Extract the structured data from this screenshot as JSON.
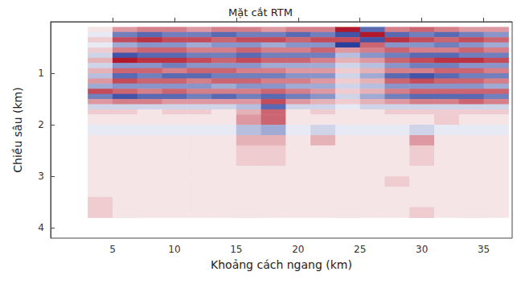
{
  "chart_data": {
    "type": "heatmap",
    "title": "Mặt cắt RTM",
    "xlabel": "Khoảng cách ngang (km)",
    "ylabel": "Chiều sâu (km)",
    "xlim": [
      0,
      37.3
    ],
    "ylim": [
      0,
      4.2
    ],
    "xticks": [
      5,
      10,
      15,
      20,
      25,
      30,
      35
    ],
    "yticks": [
      1,
      2,
      3,
      4
    ],
    "grid": false,
    "x_edges": [
      3,
      5,
      7,
      9,
      11,
      13,
      15,
      17,
      19,
      21,
      23,
      25,
      27,
      29,
      31,
      33,
      35,
      37
    ],
    "depth_edges": [
      0.1,
      0.2,
      0.3,
      0.4,
      0.5,
      0.6,
      0.7,
      0.8,
      0.9,
      1.0,
      1.1,
      1.2,
      1.3,
      1.4,
      1.5,
      1.6,
      1.7,
      1.8,
      2.0,
      2.2,
      2.4,
      2.6,
      2.8,
      3.0,
      3.2,
      3.4,
      3.6,
      3.8
    ],
    "amplitude": [
      [
        0.1,
        0.4,
        0.5,
        0.5,
        0.4,
        0.5,
        0.5,
        0.4,
        0.5,
        0.5,
        0.9,
        -0.7,
        0.5,
        0.6,
        0.5,
        0.4,
        0.4
      ],
      [
        -0.1,
        -0.6,
        -0.7,
        -0.6,
        -0.6,
        -0.7,
        -0.6,
        -0.6,
        -0.7,
        -0.6,
        -0.8,
        0.9,
        -0.7,
        -0.6,
        -0.7,
        -0.6,
        -0.5
      ],
      [
        0.2,
        0.7,
        0.8,
        0.7,
        0.7,
        0.6,
        0.7,
        0.7,
        0.6,
        0.7,
        0.7,
        -0.8,
        0.8,
        0.7,
        0.6,
        0.7,
        0.6
      ],
      [
        -0.1,
        -0.4,
        -0.5,
        -0.5,
        -0.4,
        -0.5,
        -0.5,
        -0.4,
        -0.5,
        -0.5,
        -0.9,
        0.6,
        -0.5,
        -0.5,
        -0.6,
        -0.5,
        -0.4
      ],
      [
        0.2,
        0.5,
        0.6,
        0.6,
        0.5,
        0.5,
        0.6,
        0.5,
        0.5,
        0.6,
        0.4,
        0.5,
        0.6,
        0.5,
        0.5,
        0.6,
        0.5
      ],
      [
        -0.2,
        -0.8,
        -0.7,
        -0.7,
        -0.6,
        -0.6,
        -0.7,
        -0.6,
        -0.6,
        -0.6,
        -0.3,
        -0.5,
        -0.6,
        -0.7,
        -0.7,
        -0.6,
        -0.6
      ],
      [
        0.3,
        0.9,
        0.8,
        0.8,
        0.7,
        0.6,
        0.7,
        0.6,
        0.6,
        0.5,
        0.3,
        0.4,
        0.6,
        0.7,
        0.8,
        0.8,
        0.7
      ],
      [
        -0.2,
        -0.5,
        -0.5,
        -0.6,
        -0.5,
        -0.5,
        -0.5,
        -0.4,
        -0.4,
        -0.4,
        -0.2,
        -0.3,
        -0.5,
        -0.6,
        -0.6,
        -0.5,
        -0.5
      ],
      [
        0.3,
        0.6,
        0.6,
        0.5,
        0.6,
        0.6,
        0.5,
        0.5,
        0.4,
        0.4,
        0.2,
        0.3,
        0.5,
        0.5,
        0.6,
        0.6,
        0.5
      ],
      [
        -0.3,
        -0.7,
        -0.6,
        -0.7,
        -0.7,
        -0.6,
        -0.6,
        -0.6,
        -0.5,
        -0.5,
        -0.2,
        -0.4,
        -0.7,
        -0.8,
        -0.7,
        -0.6,
        -0.6
      ],
      [
        0.4,
        0.7,
        0.6,
        0.6,
        0.5,
        0.6,
        0.6,
        0.5,
        0.5,
        0.4,
        0.2,
        0.3,
        0.6,
        0.7,
        0.6,
        0.6,
        0.5
      ],
      [
        -0.4,
        -0.5,
        -0.5,
        -0.5,
        -0.5,
        -0.4,
        -0.5,
        -0.5,
        -0.4,
        -0.4,
        -0.2,
        -0.3,
        -0.5,
        -0.5,
        -0.5,
        -0.5,
        -0.4
      ],
      [
        0.7,
        0.6,
        0.5,
        0.6,
        0.5,
        0.5,
        0.5,
        0.6,
        0.5,
        0.4,
        0.2,
        0.3,
        0.5,
        0.6,
        0.6,
        0.6,
        0.6
      ],
      [
        -0.6,
        -0.8,
        -0.7,
        -0.7,
        -0.6,
        -0.7,
        -0.6,
        -0.7,
        -0.6,
        -0.5,
        -0.2,
        -0.4,
        -0.6,
        -0.7,
        -0.7,
        -0.7,
        -0.6
      ],
      [
        0.4,
        0.5,
        0.5,
        0.4,
        0.4,
        0.4,
        0.4,
        0.7,
        0.4,
        0.3,
        0.2,
        0.3,
        0.4,
        0.5,
        0.5,
        0.6,
        0.5
      ],
      [
        -0.2,
        -0.2,
        -0.2,
        -0.2,
        -0.2,
        -0.2,
        -0.3,
        -0.7,
        -0.2,
        -0.2,
        -0.1,
        -0.2,
        -0.2,
        -0.2,
        -0.2,
        -0.2,
        -0.2
      ],
      [
        0.2,
        0.2,
        0.1,
        0.2,
        0.2,
        0.1,
        0.3,
        0.6,
        0.1,
        0.2,
        0.1,
        0.1,
        0.2,
        0.2,
        0.2,
        0.2,
        0.2
      ],
      [
        0.1,
        0.1,
        0.1,
        0.1,
        0.1,
        0.1,
        0.4,
        0.6,
        0.1,
        0.1,
        0.1,
        0.1,
        0.1,
        0.1,
        0.2,
        0.1,
        0.1
      ],
      [
        -0.1,
        -0.1,
        -0.1,
        -0.1,
        -0.1,
        -0.1,
        -0.3,
        -0.4,
        -0.1,
        -0.2,
        -0.1,
        -0.1,
        -0.1,
        -0.2,
        -0.1,
        -0.1,
        -0.1
      ],
      [
        0.1,
        0.1,
        0.1,
        0.1,
        0.1,
        0.1,
        0.3,
        0.3,
        0.1,
        0.3,
        0.1,
        0.1,
        0.1,
        0.4,
        0.1,
        0.1,
        0.1
      ],
      [
        0.1,
        0.1,
        0.1,
        0.1,
        0.1,
        0.1,
        0.2,
        0.2,
        0.1,
        0.1,
        0.1,
        0.1,
        0.1,
        0.2,
        0.1,
        0.1,
        0.1
      ],
      [
        0.1,
        0.1,
        0.1,
        0.1,
        0.1,
        0.1,
        0.2,
        0.2,
        0.1,
        0.1,
        0.1,
        0.1,
        0.1,
        0.2,
        0.1,
        0.1,
        0.1
      ],
      [
        0.1,
        0.1,
        0.1,
        0.1,
        0.1,
        0.1,
        0.1,
        0.1,
        0.1,
        0.1,
        0.1,
        0.1,
        0.1,
        0.1,
        0.1,
        0.1,
        0.1
      ],
      [
        0.1,
        0.1,
        0.1,
        0.1,
        0.1,
        0.1,
        0.1,
        0.1,
        0.1,
        0.1,
        0.1,
        0.1,
        0.2,
        0.1,
        0.1,
        0.1,
        0.1
      ],
      [
        0.1,
        0.1,
        0.1,
        0.1,
        0.1,
        0.1,
        0.1,
        0.1,
        0.1,
        0.1,
        0.1,
        0.1,
        0.1,
        0.1,
        0.1,
        0.1,
        0.1
      ],
      [
        0.2,
        0.1,
        0.1,
        0.1,
        0.1,
        0.1,
        0.1,
        0.1,
        0.1,
        0.1,
        0.1,
        0.1,
        0.1,
        0.1,
        0.1,
        0.1,
        0.1
      ],
      [
        0.2,
        0.1,
        0.1,
        0.1,
        0.1,
        0.1,
        0.1,
        0.1,
        0.1,
        0.1,
        0.1,
        0.1,
        0.1,
        0.2,
        0.1,
        0.1,
        0.1
      ]
    ]
  }
}
